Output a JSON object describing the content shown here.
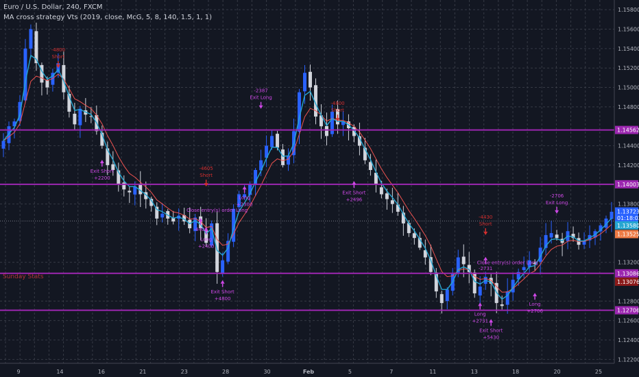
{
  "header": {
    "title": "Euro / U.S. Dollar, 240, FXCM",
    "strategy": "MA cross strategy Vts (2019, close, McG, 5, 8, 140, 1.5, 1, 1)"
  },
  "daily_note": "Sunday Stats",
  "colors": {
    "background": "#131722",
    "grid": "#363a45",
    "up_candle": "#2962ff",
    "down_candle": "#d1d4dc",
    "ma_fast": "#26a6d1",
    "ma_slow": "#ef5350",
    "level_line": "#9c27b0",
    "marker": "#ce48e6",
    "short_marker": "#d32f2f",
    "axis_text": "#b2b5be"
  },
  "chart_data": {
    "type": "candlestick",
    "symbol": "Euro / U.S. Dollar",
    "timeframe": "240",
    "y_range": [
      1.1216,
      1.159
    ],
    "x_ticks": [
      "9",
      "14",
      "16",
      "21",
      "23",
      "28",
      "30",
      "Feb",
      "5",
      "7",
      "11",
      "13",
      "18",
      "20",
      "25"
    ],
    "y_ticks": [
      "1.15800",
      "1.15600",
      "1.15400",
      "1.15200",
      "1.15000",
      "1.14800",
      "1.14400",
      "1.14200",
      "1.13800",
      "1.13200",
      "1.12800",
      "1.12600",
      "1.12400",
      "1.12200"
    ],
    "price_path": [
      1.1445,
      1.146,
      1.1465,
      1.1485,
      1.154,
      1.156,
      1.1525,
      1.1505,
      1.15,
      1.1515,
      1.1525,
      1.1495,
      1.1475,
      1.1462,
      1.1478,
      1.1472,
      1.147,
      1.1455,
      1.144,
      1.142,
      1.1415,
      1.14,
      1.1395,
      1.1392,
      1.1398,
      1.139,
      1.1385,
      1.1378,
      1.1365,
      1.137,
      1.1365,
      1.1362,
      1.1368,
      1.1362,
      1.1355,
      1.1366,
      1.1355,
      1.134,
      1.136,
      1.131,
      1.1322,
      1.1342,
      1.1375,
      1.139,
      1.139,
      1.14,
      1.1415,
      1.1425,
      1.144,
      1.145,
      1.1438,
      1.142,
      1.143,
      1.1455,
      1.1495,
      1.1515,
      1.15,
      1.147,
      1.146,
      1.145,
      1.1475,
      1.1462,
      1.1465,
      1.1458,
      1.145,
      1.144,
      1.1425,
      1.1415,
      1.14,
      1.139,
      1.1385,
      1.138,
      1.1372,
      1.136,
      1.135,
      1.1345,
      1.1335,
      1.1325,
      1.131,
      1.129,
      1.1278,
      1.1292,
      1.1308,
      1.1325,
      1.1318,
      1.131,
      1.1288,
      1.1295,
      1.1305,
      1.1298,
      1.1278,
      1.1275,
      1.129,
      1.1302,
      1.131,
      1.1315,
      1.1322,
      1.1318,
      1.1335,
      1.1348,
      1.135,
      1.1345,
      1.134,
      1.1352,
      1.1345,
      1.1338,
      1.1342,
      1.1348,
      1.1352,
      1.1358,
      1.1365,
      1.1372
    ],
    "horizontal_levels": [
      {
        "label": "1.14562",
        "value": 1.14562,
        "color": "#9c27b0"
      },
      {
        "label": "1.14003",
        "value": 1.14003,
        "color": "#9c27b0"
      },
      {
        "label": "1.13086",
        "value": 1.13086,
        "color": "#9c27b0"
      },
      {
        "label": "1.12706",
        "value": 1.12706,
        "color": "#9c27b0"
      }
    ],
    "price_tags": [
      {
        "label": "1.13723",
        "value": 1.13723,
        "color": "#2962ff"
      },
      {
        "label": "01:18:02",
        "value": 1.13655,
        "color": "#2962ff"
      },
      {
        "label": "1.13580",
        "value": 1.1358,
        "color": "#26a6d1"
      },
      {
        "label": "1.13525",
        "value": 1.1349,
        "color": "#ef7b45"
      },
      {
        "label": "1.13076",
        "value": 1.13,
        "color": "#8b1a1a"
      }
    ],
    "current_price": 1.13625,
    "signals": [
      {
        "x_index": 10,
        "price": 1.152,
        "dir": "down",
        "lines": [
          "-4800",
          "Short"
        ],
        "color": "#d32f2f"
      },
      {
        "x_index": 18,
        "price": 1.1422,
        "dir": "up",
        "lines": [
          "Exit Short",
          "+2200"
        ],
        "color": "#ce48e6"
      },
      {
        "x_index": 37,
        "price": 1.1398,
        "dir": "down",
        "lines": [
          "-4605",
          "Short"
        ],
        "color": "#d32f2f"
      },
      {
        "x_index": 36,
        "price": 1.1362,
        "dir": "up",
        "lines": [
          "-4400"
        ],
        "color": "#ce48e6"
      },
      {
        "x_index": 39,
        "price": 1.1372,
        "dir": "none",
        "lines": [
          "Close entry(s) order Long"
        ],
        "color": "#ce48e6"
      },
      {
        "x_index": 37,
        "price": 1.1352,
        "dir": "up",
        "lines": [
          "Long",
          "+2400"
        ],
        "color": "#ce48e6"
      },
      {
        "x_index": 40,
        "price": 1.1298,
        "dir": "up",
        "lines": [
          "Exit Short",
          "+4800"
        ],
        "color": "#ce48e6"
      },
      {
        "x_index": 44,
        "price": 1.1395,
        "dir": "up",
        "lines": [
          "Long",
          "+2300"
        ],
        "color": "#ce48e6"
      },
      {
        "x_index": 47,
        "price": 1.1478,
        "dir": "down",
        "lines": [
          "-2387",
          "Exit Long"
        ],
        "color": "#ce48e6"
      },
      {
        "x_index": 61,
        "price": 1.1465,
        "dir": "down",
        "lines": [
          "-4800",
          "Short"
        ],
        "color": "#d32f2f"
      },
      {
        "x_index": 64,
        "price": 1.14,
        "dir": "up",
        "lines": [
          "Exit Short",
          "+2496"
        ],
        "color": "#ce48e6"
      },
      {
        "x_index": 88,
        "price": 1.1348,
        "dir": "down",
        "lines": [
          "-4430",
          "Short"
        ],
        "color": "#d32f2f"
      },
      {
        "x_index": 88,
        "price": 1.1322,
        "dir": "up",
        "lines": [
          "-2731"
        ],
        "color": "#ce48e6"
      },
      {
        "x_index": 92,
        "price": 1.1318,
        "dir": "none",
        "lines": [
          "Close entry(s) order Long"
        ],
        "color": "#ce48e6"
      },
      {
        "x_index": 87,
        "price": 1.1275,
        "dir": "up",
        "lines": [
          "Long",
          "+2731"
        ],
        "color": "#ce48e6"
      },
      {
        "x_index": 89,
        "price": 1.1258,
        "dir": "up",
        "lines": [
          "Exit Short",
          "+5430"
        ],
        "color": "#ce48e6"
      },
      {
        "x_index": 97,
        "price": 1.1285,
        "dir": "up",
        "lines": [
          "Long",
          "+2706"
        ],
        "color": "#ce48e6"
      },
      {
        "x_index": 101,
        "price": 1.137,
        "dir": "down",
        "lines": [
          "-2706",
          "Exit Long"
        ],
        "color": "#ce48e6"
      }
    ]
  }
}
